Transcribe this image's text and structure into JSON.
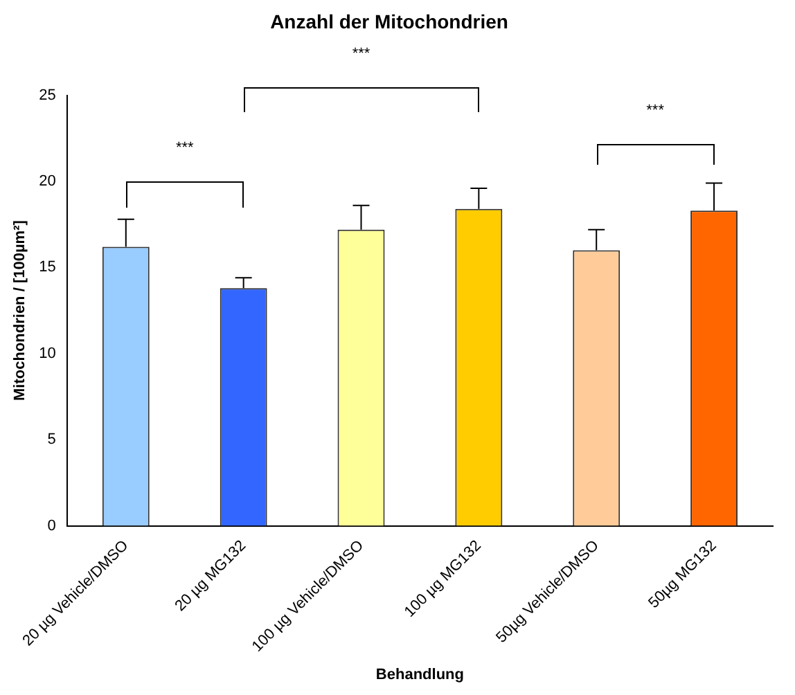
{
  "chart_data": {
    "type": "bar",
    "title": "Anzahl der Mitochondrien",
    "xlabel": "Behandlung",
    "ylabel": "Mitochondrien / [100µm²]",
    "categories": [
      "20 µg Vehicle/DMSO",
      "20 µg MG132",
      "100 µg Vehicle/DMSO",
      "100 µg MG132",
      "50µg Vehicle/DMSO",
      "50µg MG132"
    ],
    "values": [
      16.2,
      13.8,
      17.2,
      18.4,
      16.0,
      18.3
    ],
    "colors": [
      "#99ccff",
      "#3366ff",
      "#ffff99",
      "#ffcc00",
      "#ffcc99",
      "#ff6600"
    ],
    "errors": [
      [
        16.2,
        17.8
      ],
      [
        13.8,
        14.4
      ],
      [
        17.2,
        18.6
      ],
      [
        18.4,
        19.6
      ],
      [
        16.0,
        17.2
      ],
      [
        18.3,
        19.9
      ]
    ],
    "ylim": [
      0,
      25
    ],
    "yticks": [
      0,
      5,
      10,
      15,
      20,
      25
    ],
    "grid": false,
    "legend": false,
    "annotations": [
      "***",
      "***",
      "***"
    ]
  }
}
